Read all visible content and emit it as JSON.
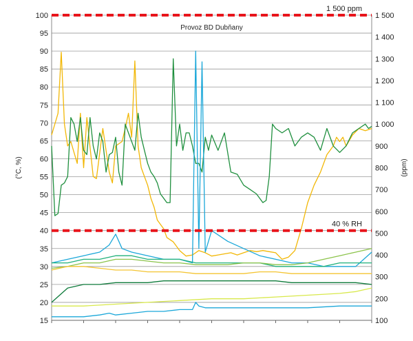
{
  "chart_data": {
    "type": "line",
    "title": "Provoz BD Dubňany",
    "ylabel_left": "(°C, %)",
    "ylabel_right": "(ppm)",
    "y_left_range": [
      15,
      100
    ],
    "y_left_ticks": [
      15,
      20,
      25,
      30,
      35,
      40,
      45,
      50,
      55,
      60,
      65,
      70,
      75,
      80,
      85,
      90,
      95,
      100
    ],
    "y_right_range": [
      100,
      1500
    ],
    "y_right_ticks": [
      "100",
      "200",
      "300",
      "400",
      "500",
      "600",
      "700",
      "800",
      "900",
      "1 000",
      "1 100",
      "1 200",
      "1 300",
      "1 400",
      "1 500"
    ],
    "grid": true,
    "reference_lines": [
      {
        "label": "1 500 ppm",
        "value_left_axis": 100,
        "color": "#e8141b"
      },
      {
        "label": "40 % RH",
        "value_left_axis": 40,
        "color": "#e8141b"
      }
    ],
    "series": [
      {
        "axis": "right",
        "color": "#f2b705",
        "x": [
          0,
          2,
          3,
          4,
          5,
          6,
          8,
          9,
          10,
          11,
          13,
          14,
          16,
          18,
          19,
          20,
          22,
          23,
          24,
          25,
          26,
          27,
          28,
          29,
          30,
          31,
          32,
          33,
          34,
          35,
          36,
          38,
          40,
          42,
          44,
          46,
          48,
          50,
          52,
          54,
          56,
          58,
          60,
          62,
          64,
          66,
          68,
          70,
          72,
          74,
          76,
          78,
          80,
          82,
          84,
          86,
          88,
          89,
          90,
          91,
          92,
          94,
          96,
          98,
          100
        ],
        "values": [
          950,
          1050,
          1330,
          1000,
          900,
          920,
          820,
          1050,
          800,
          1030,
          760,
          750,
          980,
          780,
          730,
          900,
          920,
          980,
          1050,
          940,
          1290,
          900,
          800,
          760,
          720,
          660,
          620,
          560,
          540,
          520,
          480,
          460,
          420,
          395,
          400,
          420,
          410,
          395,
          400,
          405,
          410,
          400,
          410,
          420,
          415,
          420,
          415,
          410,
          380,
          390,
          420,
          520,
          640,
          720,
          780,
          860,
          900,
          940,
          920,
          940,
          900,
          950,
          980,
          970,
          980
        ]
      },
      {
        "axis": "right",
        "color": "#1f8f3e",
        "x": [
          0,
          1,
          2,
          3,
          4,
          5,
          6,
          7,
          8,
          9,
          10,
          11,
          12,
          13,
          14,
          15,
          16,
          17,
          18,
          19,
          20,
          21,
          22,
          23,
          24,
          25,
          26,
          27,
          28,
          29,
          30,
          31,
          32,
          33,
          34,
          35,
          36,
          37,
          38,
          39,
          40,
          41,
          42,
          43,
          44,
          45,
          46,
          47,
          48,
          49,
          50,
          52,
          54,
          56,
          58,
          60,
          62,
          64,
          66,
          67,
          68,
          69,
          70,
          72,
          74,
          76,
          78,
          80,
          82,
          84,
          86,
          88,
          90,
          92,
          94,
          96,
          98,
          99,
          100
        ],
        "values": [
          900,
          580,
          590,
          720,
          730,
          760,
          1030,
          1000,
          920,
          1030,
          880,
          860,
          1030,
          900,
          840,
          960,
          920,
          780,
          860,
          870,
          940,
          780,
          720,
          1000,
          960,
          920,
          880,
          1050,
          940,
          880,
          820,
          780,
          760,
          730,
          680,
          660,
          640,
          640,
          1300,
          900,
          1000,
          880,
          960,
          960,
          900,
          820,
          820,
          780,
          940,
          880,
          950,
          880,
          960,
          780,
          770,
          720,
          700,
          680,
          640,
          650,
          760,
          1000,
          980,
          960,
          980,
          900,
          940,
          960,
          940,
          880,
          980,
          900,
          870,
          900,
          960,
          980,
          1000,
          980,
          990
        ]
      },
      {
        "axis": "left",
        "color": "#1aa7d9",
        "x": [
          0,
          5,
          10,
          15,
          18,
          20,
          22,
          25,
          30,
          35,
          40,
          44,
          45,
          46,
          47,
          48,
          50,
          55,
          60,
          65,
          70,
          75,
          80,
          85,
          90,
          95,
          100
        ],
        "values": [
          31,
          32,
          33,
          34,
          36,
          39,
          35,
          34,
          33,
          32,
          32,
          31,
          90,
          35,
          87,
          34,
          40,
          37,
          35,
          33,
          32,
          31,
          31,
          30,
          30,
          30,
          34
        ]
      },
      {
        "axis": "left",
        "color": "#1fb07a",
        "x": [
          0,
          5,
          10,
          15,
          20,
          25,
          30,
          35,
          40,
          45,
          50,
          55,
          60,
          65,
          70,
          75,
          80,
          85,
          90,
          95,
          100
        ],
        "values": [
          31,
          31,
          32,
          32,
          33,
          33,
          32,
          32,
          32,
          31,
          31,
          31,
          31,
          31,
          30,
          30,
          30,
          30,
          31,
          31,
          31
        ]
      },
      {
        "axis": "left",
        "color": "#8bc34a",
        "x": [
          0,
          5,
          10,
          15,
          20,
          25,
          30,
          35,
          40,
          45,
          50,
          55,
          60,
          65,
          70,
          75,
          80,
          85,
          90,
          95,
          100
        ],
        "values": [
          29.5,
          30,
          31,
          31,
          32,
          32,
          31.5,
          31,
          31,
          30.5,
          30.5,
          30.5,
          31,
          31,
          30.5,
          30.5,
          31,
          32,
          33,
          34,
          35
        ]
      },
      {
        "axis": "left",
        "color": "#f4c430",
        "x": [
          0,
          5,
          10,
          15,
          20,
          25,
          30,
          35,
          40,
          45,
          50,
          55,
          60,
          65,
          70,
          75,
          80,
          85,
          90,
          95,
          100
        ],
        "values": [
          29,
          30,
          30,
          29.5,
          29,
          29,
          28.5,
          28.5,
          28.5,
          28,
          28,
          28,
          28,
          28.5,
          28.5,
          28,
          28,
          28,
          28,
          28,
          28
        ]
      },
      {
        "axis": "left",
        "color": "#0d7a3a",
        "x": [
          0,
          5,
          10,
          12,
          15,
          20,
          25,
          30,
          35,
          40,
          45,
          50,
          55,
          60,
          65,
          70,
          75,
          80,
          85,
          90,
          95,
          100
        ],
        "values": [
          20,
          24,
          25,
          25,
          25,
          25.5,
          25.5,
          25.5,
          26,
          26,
          26,
          26,
          26,
          26,
          26,
          26,
          25.5,
          25.5,
          25.5,
          25.5,
          25.5,
          25
        ]
      },
      {
        "axis": "left",
        "color": "#d8e84a",
        "x": [
          0,
          10,
          20,
          30,
          40,
          50,
          60,
          70,
          80,
          90,
          95,
          100
        ],
        "values": [
          19,
          19,
          19.5,
          20,
          20.5,
          21,
          21,
          21.5,
          22,
          22.5,
          23,
          24
        ]
      },
      {
        "axis": "left",
        "color": "#1aa7d9",
        "x": [
          0,
          10,
          15,
          18,
          20,
          25,
          30,
          35,
          40,
          44,
          45,
          46,
          48,
          50,
          55,
          60,
          70,
          80,
          90,
          100
        ],
        "values": [
          16,
          16,
          16.5,
          17,
          16.5,
          17,
          17.5,
          17.5,
          18,
          18,
          20,
          19,
          18.5,
          18.5,
          18.5,
          18.5,
          18.5,
          18.5,
          19,
          19
        ]
      }
    ]
  }
}
